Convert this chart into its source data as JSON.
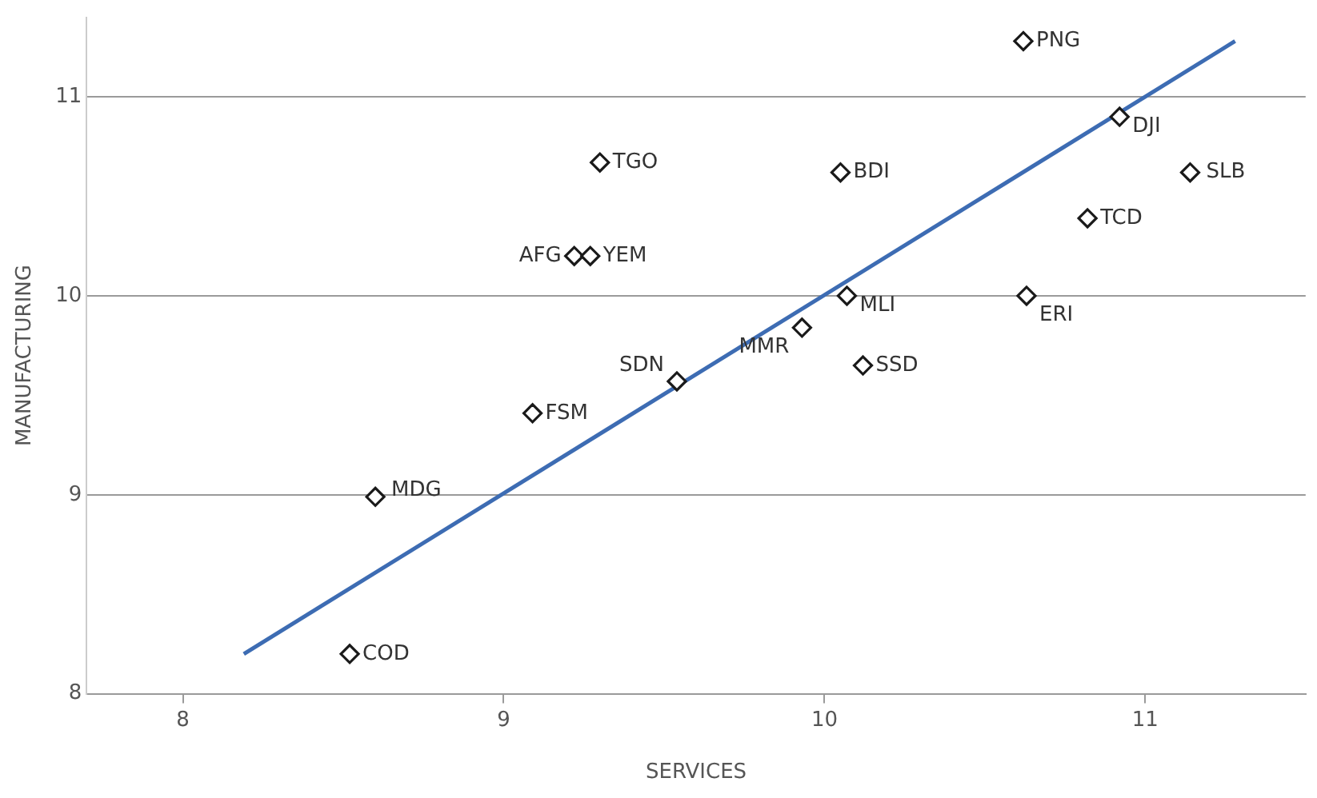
{
  "chart_data": {
    "type": "scatter",
    "xlabel": "SERVICES",
    "ylabel": "MANUFACTURING",
    "xlim": [
      7.7,
      11.5
    ],
    "ylim": [
      8,
      11.4
    ],
    "xticks": [
      8,
      9,
      10,
      11
    ],
    "yticks": [
      8,
      9,
      10,
      11
    ],
    "grid": "y",
    "marker": "diamond",
    "series": [
      {
        "color": "#1a1a1a",
        "x": [
          10.62,
          10.92,
          11.14,
          9.3,
          10.05,
          10.82,
          9.22,
          9.27,
          10.07,
          10.63,
          9.93,
          10.12,
          9.54,
          9.09,
          8.6,
          8.52
        ],
        "values": [
          11.28,
          10.9,
          10.62,
          10.67,
          10.62,
          10.39,
          10.2,
          10.2,
          10,
          10,
          9.84,
          9.65,
          9.57,
          9.41,
          8.99,
          8.2
        ]
      },
      {
        "type": "line",
        "color": "#3d6cb3",
        "marker": "none",
        "x": [
          8.19,
          11.28
        ],
        "values": [
          8.2,
          11.28
        ]
      }
    ],
    "annotations": [
      {
        "text": "PNG",
        "x": 10.62,
        "y": 11.28
      },
      {
        "text": "DJI",
        "x": 10.92,
        "y": 10.9
      },
      {
        "text": "SLB",
        "x": 11.14,
        "y": 10.62
      },
      {
        "text": "TGO",
        "x": 9.3,
        "y": 10.67
      },
      {
        "text": "BDI",
        "x": 10.05,
        "y": 10.62
      },
      {
        "text": "TCD",
        "x": 10.82,
        "y": 10.39
      },
      {
        "text": "AFG",
        "x": 9.22,
        "y": 10.2
      },
      {
        "text": "YEM",
        "x": 9.27,
        "y": 10.2
      },
      {
        "text": "MLI",
        "x": 10.07,
        "y": 10
      },
      {
        "text": "ERI",
        "x": 10.63,
        "y": 10
      },
      {
        "text": "MMR",
        "x": 9.93,
        "y": 9.84
      },
      {
        "text": "SSD",
        "x": 10.12,
        "y": 9.65
      },
      {
        "text": "SDN",
        "x": 9.54,
        "y": 9.57
      },
      {
        "text": "FSM",
        "x": 9.09,
        "y": 9.41
      },
      {
        "text": "MDG",
        "x": 8.6,
        "y": 8.99
      },
      {
        "text": "COD",
        "x": 8.52,
        "y": 8.2
      }
    ]
  }
}
